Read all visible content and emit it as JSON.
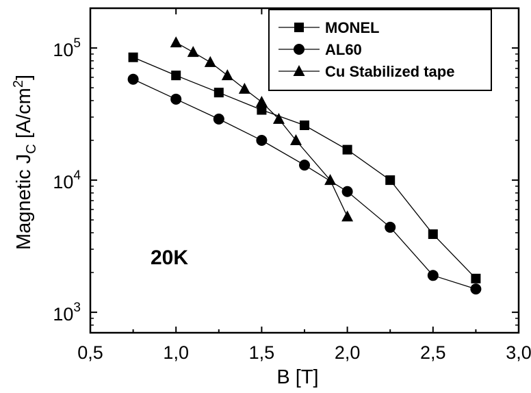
{
  "chart_data": {
    "type": "line",
    "title": "",
    "xlabel": "B [T]",
    "ylabel": "Magnetic J",
    "ylabel_sub": "C",
    "ylabel_unit_prefix": " [A/cm",
    "ylabel_unit_sup": "2",
    "ylabel_unit_suffix": "]",
    "xlim": [
      0.5,
      3.0
    ],
    "ylim": [
      700,
      200000
    ],
    "yscale": "log",
    "x_ticks": [
      0.5,
      1.0,
      1.5,
      2.0,
      2.5,
      3.0
    ],
    "x_tick_labels": [
      "0,5",
      "1,0",
      "1,5",
      "2,0",
      "2,5",
      "3,0"
    ],
    "y_ticks": [
      1000,
      10000,
      100000
    ],
    "y_tick_base": "10",
    "y_tick_exponents": [
      "3",
      "4",
      "5"
    ],
    "grid": false,
    "legend_position": "top-right",
    "annotation": "20K",
    "series": [
      {
        "name": "MONEL",
        "marker": "square",
        "x": [
          0.75,
          1.0,
          1.25,
          1.5,
          1.75,
          2.0,
          2.25,
          2.5,
          2.75
        ],
        "y": [
          85000,
          62000,
          46000,
          34000,
          26000,
          17000,
          10000,
          3900,
          1800
        ]
      },
      {
        "name": "AL60",
        "marker": "circle",
        "x": [
          0.75,
          1.0,
          1.25,
          1.5,
          1.75,
          2.0,
          2.25,
          2.5,
          2.75
        ],
        "y": [
          58000,
          41000,
          29000,
          20000,
          13000,
          8200,
          4400,
          1900,
          1500
        ]
      },
      {
        "name": "Cu Stabilized tape",
        "marker": "triangle",
        "x": [
          1.0,
          1.1,
          1.2,
          1.3,
          1.4,
          1.5,
          1.6,
          1.7,
          1.9,
          2.0
        ],
        "y": [
          110000,
          93000,
          78000,
          62000,
          49000,
          39000,
          29000,
          20000,
          10000,
          5300
        ]
      }
    ]
  }
}
